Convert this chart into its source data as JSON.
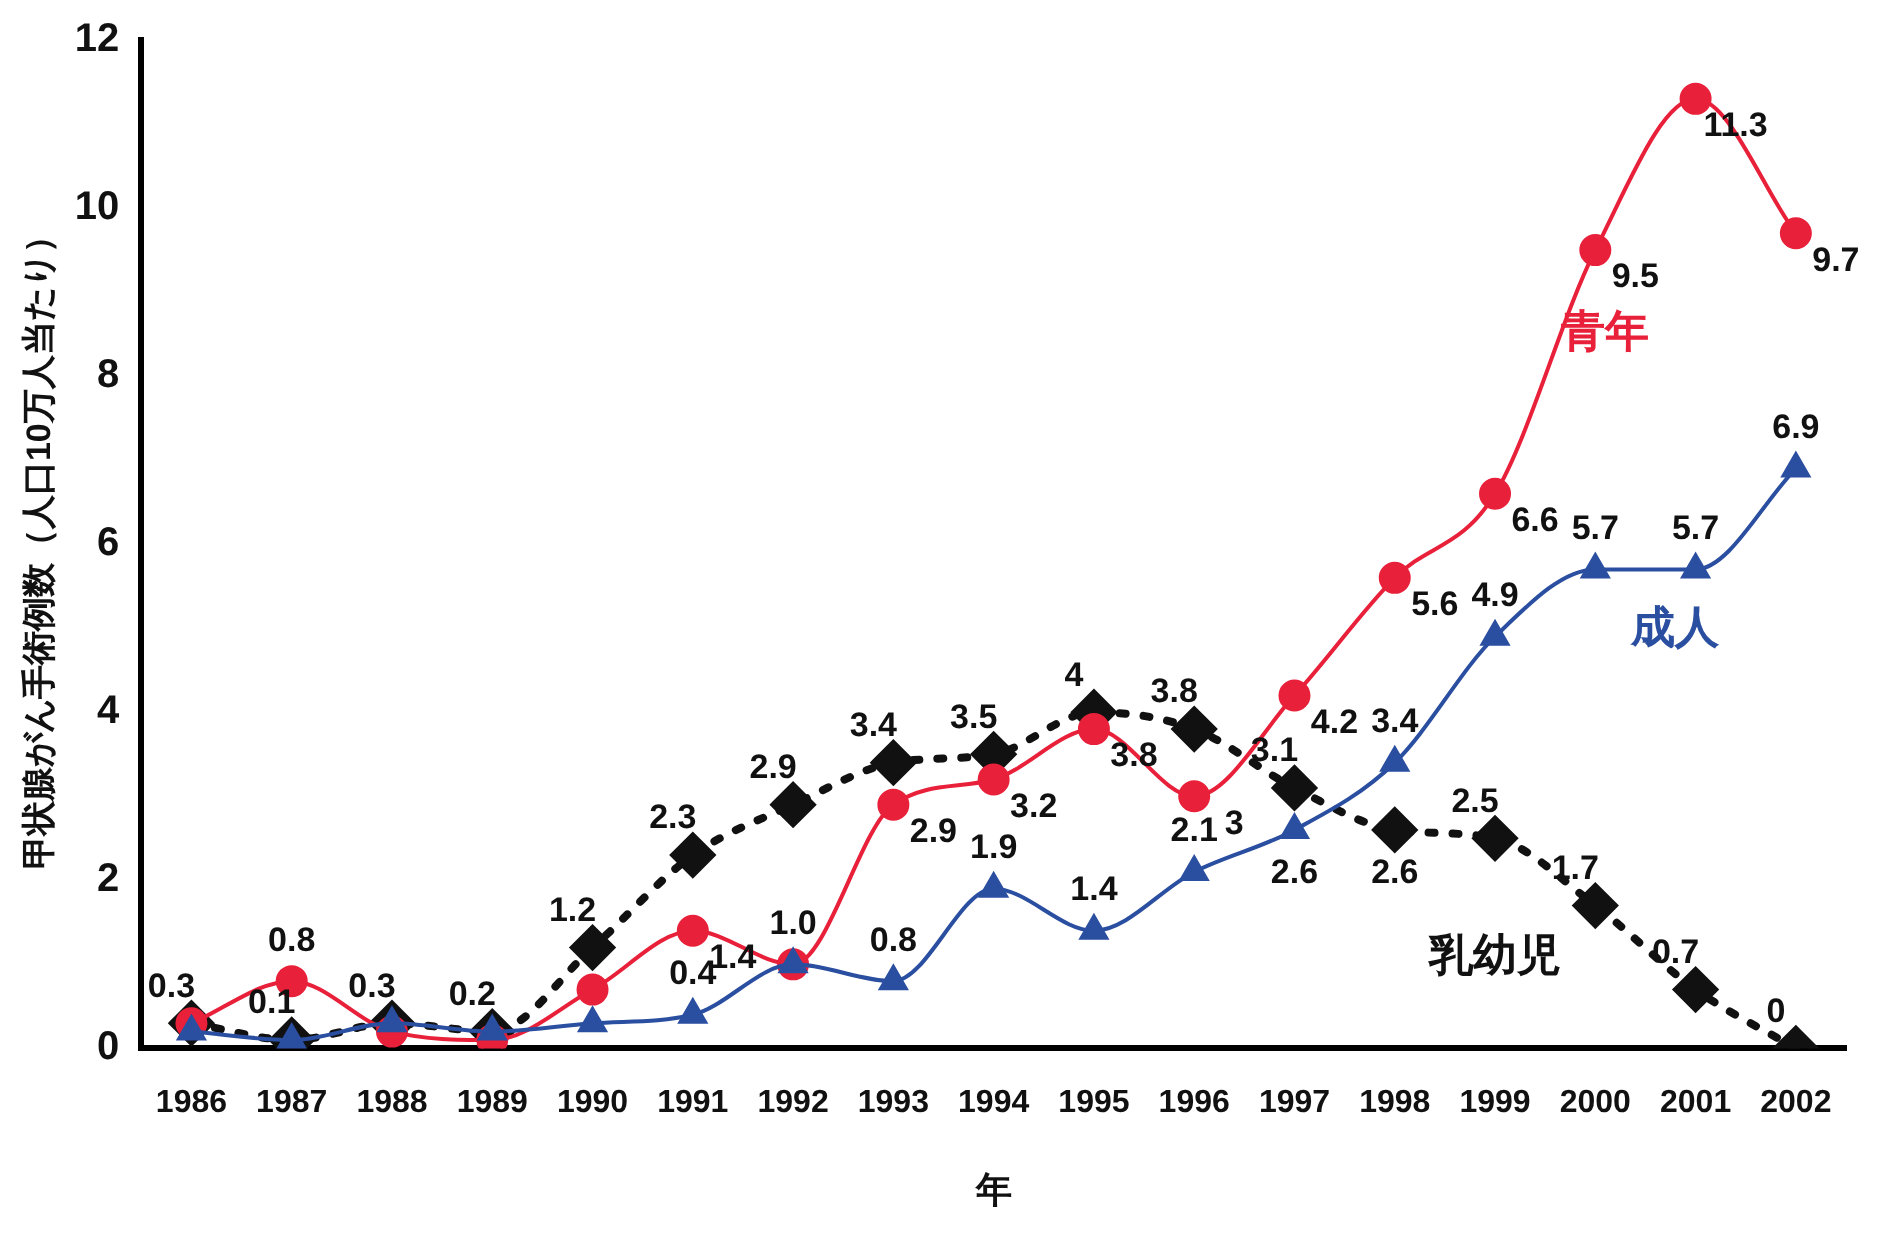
{
  "chart_data": {
    "type": "line",
    "xlabel": "年",
    "ylabel": "甲状腺がん手術例数（人口10万人当たり）",
    "categories": [
      "1986",
      "1987",
      "1988",
      "1989",
      "1990",
      "1991",
      "1992",
      "1993",
      "1994",
      "1995",
      "1996",
      "1997",
      "1998",
      "1999",
      "2000",
      "2001",
      "2002"
    ],
    "ylim": [
      0,
      12
    ],
    "yticks": [
      0,
      2,
      4,
      6,
      8,
      10,
      12
    ],
    "grid": false,
    "legend": false,
    "series": [
      {
        "name": "青年",
        "color": "#e8203a",
        "marker": "circle",
        "line_style": "solid",
        "values": [
          0.3,
          0.8,
          0.2,
          0.1,
          0.7,
          1.4,
          1.0,
          2.9,
          3.2,
          3.8,
          3.0,
          4.2,
          5.6,
          6.6,
          9.5,
          11.3,
          9.7
        ],
        "value_labels": [
          null,
          "0.8",
          null,
          null,
          null,
          "1.4",
          "1.0",
          "2.9",
          "3.2",
          "3.8",
          "3",
          "4.2",
          "5.6",
          "6.6",
          "9.5",
          "11.3",
          "9.7"
        ]
      },
      {
        "name": "成人",
        "color": "#2a4ea0",
        "marker": "triangle",
        "line_style": "solid",
        "values": [
          0.2,
          0.1,
          0.3,
          0.2,
          0.3,
          0.4,
          1.0,
          0.8,
          1.9,
          1.4,
          2.1,
          2.6,
          3.4,
          4.9,
          5.7,
          5.7,
          6.9
        ],
        "value_labels": [
          null,
          null,
          null,
          null,
          null,
          "0.4",
          null,
          "0.8",
          "1.9",
          "1.4",
          "2.1",
          "2.6",
          "3.4",
          "4.9",
          "5.7",
          "5.7",
          "6.9"
        ]
      },
      {
        "name": "乳幼児",
        "color": "#111111",
        "marker": "diamond",
        "line_style": "dotted",
        "values": [
          0.3,
          0.1,
          0.3,
          0.2,
          1.2,
          2.3,
          2.9,
          3.4,
          3.5,
          4,
          3.8,
          3.1,
          2.6,
          2.5,
          1.7,
          0.7,
          0
        ],
        "value_labels": [
          "0.3",
          "0.1",
          "0.3",
          "0.2",
          "1.2",
          "2.3",
          "2.9",
          "3.4",
          "3.5",
          "4",
          "3.8",
          "3.1",
          "2.6",
          "2.5",
          "1.7",
          "0.7",
          "0"
        ]
      }
    ]
  }
}
